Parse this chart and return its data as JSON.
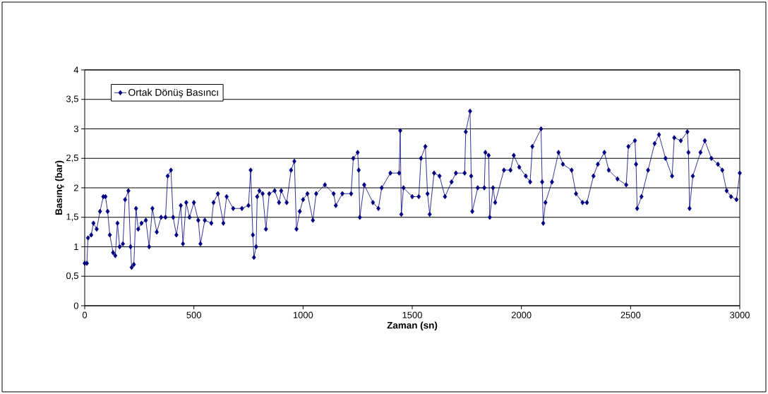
{
  "chart_data": {
    "type": "line",
    "xlabel": "Zaman (sn)",
    "ylabel": "Basınç (bar)",
    "xlim": [
      0,
      3000
    ],
    "ylim": [
      0,
      4
    ],
    "xticks": [
      0,
      500,
      1000,
      1500,
      2000,
      2500,
      3000
    ],
    "yticks": [
      0,
      {
        "value": 0.5,
        "label": "0,5"
      },
      1,
      {
        "value": 1.5,
        "label": "1,5"
      },
      2,
      {
        "value": 2.5,
        "label": "2,5"
      },
      3,
      {
        "value": 3.5,
        "label": "3,5"
      },
      4
    ],
    "grid": "y",
    "legend": "top left",
    "marker": "diamond",
    "line_style": "solid",
    "series": [
      {
        "name": "Ortak Dönüş Basıncı",
        "color": "#000080",
        "x": [
          0,
          10,
          15,
          30,
          40,
          55,
          70,
          85,
          95,
          105,
          115,
          130,
          140,
          150,
          160,
          175,
          185,
          200,
          210,
          215,
          225,
          235,
          245,
          260,
          280,
          295,
          310,
          330,
          350,
          370,
          380,
          395,
          405,
          420,
          440,
          450,
          465,
          480,
          500,
          520,
          530,
          550,
          580,
          590,
          610,
          635,
          650,
          680,
          720,
          750,
          760,
          770,
          775,
          785,
          790,
          800,
          815,
          830,
          845,
          870,
          890,
          900,
          925,
          945,
          960,
          970,
          985,
          1000,
          1020,
          1045,
          1060,
          1100,
          1140,
          1150,
          1180,
          1220,
          1230,
          1250,
          1255,
          1260,
          1280,
          1320,
          1345,
          1360,
          1400,
          1440,
          1445,
          1450,
          1460,
          1500,
          1530,
          1540,
          1560,
          1570,
          1580,
          1600,
          1625,
          1650,
          1680,
          1700,
          1740,
          1745,
          1765,
          1770,
          1775,
          1800,
          1830,
          1835,
          1850,
          1855,
          1870,
          1880,
          1920,
          1950,
          1965,
          1990,
          2020,
          2040,
          2050,
          2090,
          2095,
          2100,
          2110,
          2140,
          2170,
          2190,
          2230,
          2250,
          2280,
          2300,
          2330,
          2350,
          2380,
          2400,
          2440,
          2480,
          2490,
          2520,
          2525,
          2530,
          2550,
          2580,
          2610,
          2630,
          2660,
          2690,
          2700,
          2730,
          2760,
          2765,
          2770,
          2785,
          2820,
          2840,
          2870,
          2900,
          2920,
          2940,
          2960,
          2985,
          3000
        ],
        "values": [
          0.72,
          0.72,
          1.15,
          1.2,
          1.4,
          1.3,
          1.6,
          1.85,
          1.85,
          1.6,
          1.2,
          0.9,
          0.85,
          1.4,
          1.0,
          1.05,
          1.8,
          1.95,
          1.0,
          0.65,
          0.7,
          1.65,
          1.3,
          1.4,
          1.45,
          1.0,
          1.65,
          1.25,
          1.5,
          1.5,
          2.2,
          2.3,
          1.5,
          1.2,
          1.7,
          1.05,
          1.75,
          1.5,
          1.75,
          1.45,
          1.05,
          1.45,
          1.4,
          1.75,
          1.9,
          1.4,
          1.85,
          1.65,
          1.65,
          1.7,
          2.3,
          1.2,
          0.82,
          1.0,
          1.85,
          1.95,
          1.9,
          1.3,
          1.9,
          1.95,
          1.75,
          1.95,
          1.75,
          2.3,
          2.45,
          1.3,
          1.6,
          1.8,
          1.9,
          1.45,
          1.9,
          2.05,
          1.9,
          1.7,
          1.9,
          1.9,
          2.5,
          2.6,
          2.3,
          1.5,
          2.05,
          1.75,
          1.65,
          2.0,
          2.25,
          2.25,
          2.97,
          1.55,
          2.0,
          1.85,
          1.85,
          2.5,
          2.7,
          1.9,
          1.55,
          2.25,
          2.2,
          1.85,
          2.1,
          2.25,
          2.25,
          2.95,
          3.3,
          2.2,
          1.6,
          2.0,
          2.0,
          2.6,
          2.55,
          1.5,
          2.0,
          1.75,
          2.3,
          2.3,
          2.55,
          2.35,
          2.2,
          2.1,
          2.7,
          3.0,
          2.1,
          1.4,
          1.75,
          2.1,
          2.6,
          2.4,
          2.3,
          1.9,
          1.75,
          1.75,
          2.2,
          2.4,
          2.6,
          2.3,
          2.15,
          2.05,
          2.7,
          2.8,
          2.4,
          1.65,
          1.85,
          2.3,
          2.75,
          2.9,
          2.5,
          2.2,
          2.85,
          2.8,
          2.95,
          2.6,
          1.65,
          2.2,
          2.6,
          2.8,
          2.5,
          2.4,
          2.3,
          1.95,
          1.85,
          1.8,
          2.25
        ]
      }
    ]
  }
}
